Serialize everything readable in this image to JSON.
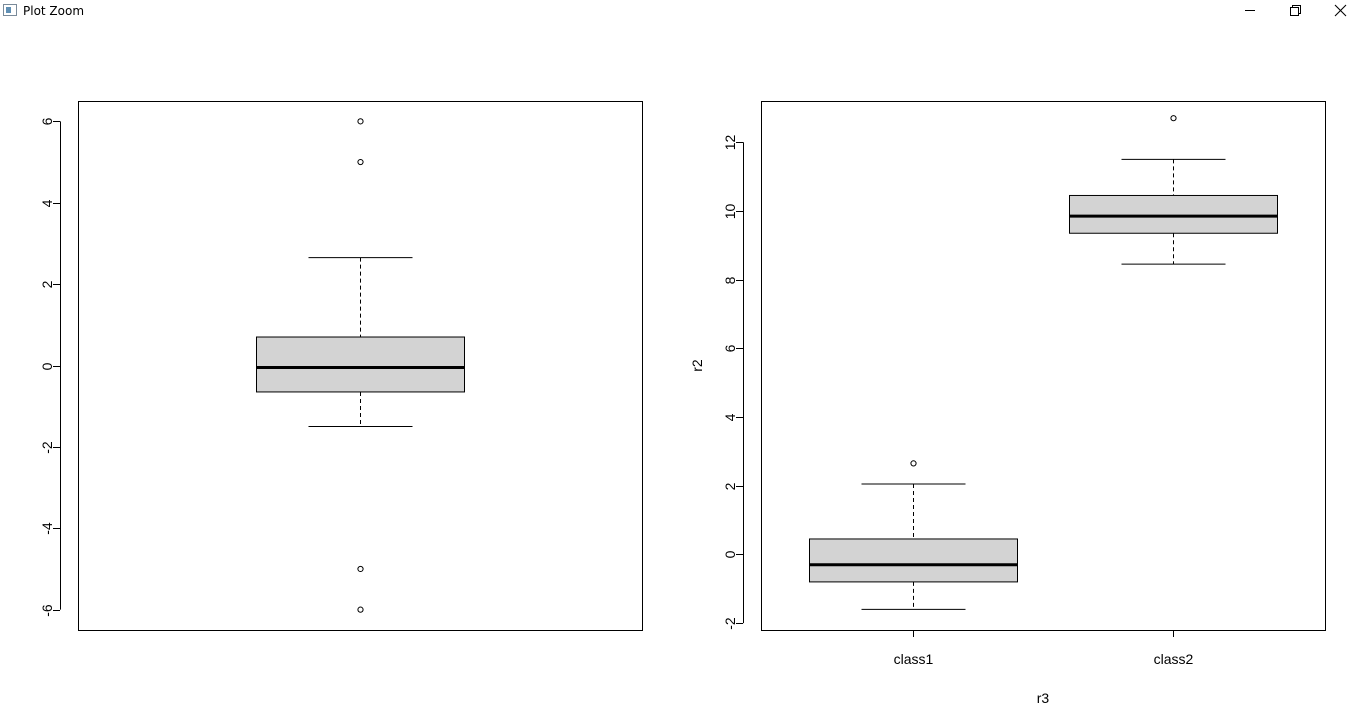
{
  "window": {
    "title": "Plot Zoom",
    "controls": {
      "minimize_icon": "minimize-icon",
      "restore_icon": "restore-icon",
      "close_icon": "close-icon"
    }
  },
  "colors": {
    "box_fill": "#d3d3d3",
    "stroke": "#000000",
    "background": "#ffffff"
  },
  "chart_data": [
    {
      "type": "boxplot",
      "title": "",
      "xlabel": "",
      "ylabel": "",
      "ylim": [
        -6.5,
        6.5
      ],
      "yticks": [
        -6,
        -4,
        -2,
        0,
        2,
        4,
        6
      ],
      "ytick_labels": [
        "-6",
        "-4",
        "-2",
        "0",
        "2",
        "4",
        "6"
      ],
      "categories": [],
      "boxes": [
        {
          "whisker_low": -1.5,
          "q1": -0.65,
          "median": -0.05,
          "q3": 0.7,
          "whisker_high": 2.65,
          "outliers": [
            6,
            5,
            -5,
            -6
          ]
        }
      ],
      "grid": false
    },
    {
      "type": "boxplot",
      "title": "",
      "xlabel": "r3",
      "ylabel": "r2",
      "ylim": [
        -2.2,
        13.2
      ],
      "yticks": [
        -2,
        0,
        2,
        4,
        6,
        8,
        10,
        12
      ],
      "ytick_labels": [
        "-2",
        "0",
        "2",
        "4",
        "6",
        "8",
        "10",
        "12"
      ],
      "categories": [
        "class1",
        "class2"
      ],
      "boxes": [
        {
          "whisker_low": -1.6,
          "q1": -0.8,
          "median": -0.3,
          "q3": 0.45,
          "whisker_high": 2.05,
          "outliers": [
            2.65
          ]
        },
        {
          "whisker_low": 8.45,
          "q1": 9.35,
          "median": 9.85,
          "q3": 10.45,
          "whisker_high": 11.5,
          "outliers": [
            12.7
          ]
        }
      ],
      "grid": false
    }
  ]
}
